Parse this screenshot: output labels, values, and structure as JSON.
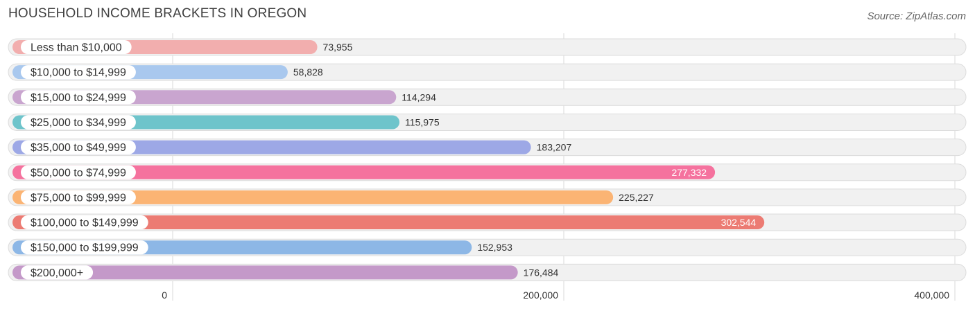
{
  "header": {
    "title": "HOUSEHOLD INCOME BRACKETS IN OREGON",
    "source": "Source: ZipAtlas.com"
  },
  "chart_data": {
    "type": "bar",
    "orientation": "horizontal",
    "title": "HOUSEHOLD INCOME BRACKETS IN OREGON",
    "categories": [
      "Less than $10,000",
      "$10,000 to $14,999",
      "$15,000 to $24,999",
      "$25,000 to $34,999",
      "$35,000 to $49,999",
      "$50,000 to $74,999",
      "$75,000 to $99,999",
      "$100,000 to $149,999",
      "$150,000 to $199,999",
      "$200,000+"
    ],
    "values": [
      73955,
      58828,
      114294,
      115975,
      183207,
      277332,
      225227,
      302544,
      152953,
      176484
    ],
    "value_labels": [
      "73,955",
      "58,828",
      "114,294",
      "115,975",
      "183,207",
      "277,332",
      "225,227",
      "302,544",
      "152,953",
      "176,484"
    ],
    "colors": [
      "#f2aeae",
      "#a9c8ee",
      "#c9a5cf",
      "#6ec4cb",
      "#9da8e6",
      "#f5729e",
      "#fbb474",
      "#ec7b73",
      "#8db7e6",
      "#c499c9"
    ],
    "label_inside": [
      false,
      false,
      false,
      false,
      false,
      true,
      false,
      true,
      false,
      false
    ],
    "xlim": [
      0,
      400000
    ],
    "ticks": [
      0,
      200000,
      400000
    ],
    "tick_labels": [
      "0",
      "200,000",
      "400,000"
    ],
    "grid": true,
    "legend": "none",
    "xlabel": "",
    "ylabel": ""
  }
}
